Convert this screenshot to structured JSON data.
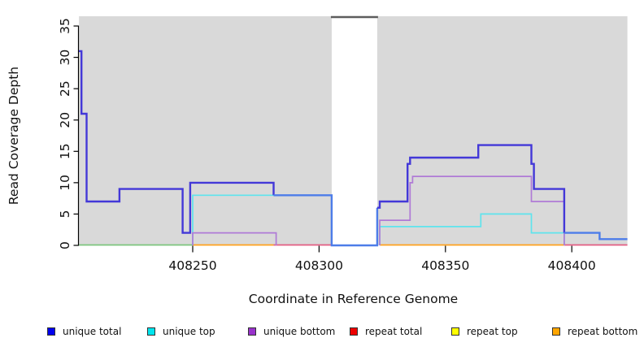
{
  "chart_data": {
    "type": "line",
    "subtype": "step-coverage",
    "title": "",
    "xlabel": "Coordinate in Reference Genome",
    "ylabel": "Read Coverage Depth",
    "xlim": [
      408205,
      408422
    ],
    "ylim": [
      0,
      35
    ],
    "x_ticks": [
      408250,
      408300,
      408350,
      408400
    ],
    "y_ticks": [
      0,
      5,
      10,
      15,
      20,
      25,
      30,
      35
    ],
    "grid": false,
    "plot_bg_color": "#d9d9d9",
    "gap_region": {
      "from": 408305,
      "to": 408323,
      "fill": "#ffffff",
      "top_line_color": "#5d5d5d"
    },
    "baseline_segments": [
      {
        "color": "#7cc47e",
        "from": 408205,
        "to": 408250
      },
      {
        "color": "#ffa11c",
        "from": 408250,
        "to": 408282
      },
      {
        "color": "#e25c82",
        "from": 408282,
        "to": 408305
      },
      {
        "color": "#ffa11c",
        "from": 408324,
        "to": 408397
      },
      {
        "color": "#e25c82",
        "from": 408397,
        "to": 408422
      }
    ],
    "series": [
      {
        "name": "unique total",
        "legend_color": "#0000EE",
        "width": 2.4,
        "paths": [
          {
            "color": "#4338d8",
            "points": [
              [
                408205,
                31
              ],
              [
                408206,
                31
              ],
              [
                408206,
                21
              ],
              [
                408208,
                21
              ],
              [
                408208,
                7
              ],
              [
                408221,
                7
              ],
              [
                408221,
                9
              ],
              [
                408246,
                9
              ],
              [
                408246,
                2
              ],
              [
                408249,
                2
              ],
              [
                408249,
                10
              ],
              [
                408282,
                10
              ],
              [
                408282,
                8
              ]
            ]
          },
          {
            "color": "#4d7de9",
            "points": [
              [
                408282,
                8
              ],
              [
                408305,
                8
              ],
              [
                408305,
                0
              ],
              [
                408323,
                0
              ],
              [
                408323,
                6
              ]
            ]
          },
          {
            "color": "#4338d8",
            "points": [
              [
                408323,
                6
              ],
              [
                408324,
                6
              ],
              [
                408324,
                7
              ],
              [
                408335,
                7
              ],
              [
                408335,
                13
              ],
              [
                408336,
                13
              ],
              [
                408336,
                14
              ],
              [
                408363,
                14
              ],
              [
                408363,
                16
              ],
              [
                408384,
                16
              ],
              [
                408384,
                13
              ],
              [
                408385,
                13
              ],
              [
                408385,
                9
              ],
              [
                408397,
                9
              ],
              [
                408397,
                2
              ]
            ]
          },
          {
            "color": "#4d7de9",
            "points": [
              [
                408397,
                2
              ],
              [
                408411,
                2
              ],
              [
                408411,
                1
              ],
              [
                408422,
                1
              ]
            ]
          }
        ]
      },
      {
        "name": "unique top",
        "legend_color": "#00E5EE",
        "width": 1.7,
        "paths": [
          {
            "color": "#5ee4ed",
            "points": [
              [
                408250,
                0
              ],
              [
                408250,
                8
              ],
              [
                408305,
                8
              ],
              [
                408305,
                0
              ]
            ]
          },
          {
            "color": "#5ee4ed",
            "points": [
              [
                408324,
                0
              ],
              [
                408324,
                3
              ],
              [
                408364,
                3
              ],
              [
                408364,
                5
              ],
              [
                408384,
                5
              ],
              [
                408384,
                2
              ],
              [
                408397,
                2
              ],
              [
                408397,
                0
              ]
            ]
          }
        ]
      },
      {
        "name": "unique bottom",
        "legend_color": "#9932CC",
        "width": 1.7,
        "paths": [
          {
            "color": "#b07ad6",
            "points": [
              [
                408250,
                0
              ],
              [
                408250,
                2
              ],
              [
                408283,
                2
              ],
              [
                408283,
                0
              ]
            ]
          },
          {
            "color": "#b07ad6",
            "points": [
              [
                408324,
                0
              ],
              [
                408324,
                4
              ],
              [
                408336,
                4
              ],
              [
                408336,
                10
              ],
              [
                408337,
                10
              ],
              [
                408337,
                11
              ],
              [
                408384,
                11
              ],
              [
                408384,
                7
              ],
              [
                408397,
                7
              ],
              [
                408397,
                0
              ]
            ]
          }
        ]
      },
      {
        "name": "repeat total",
        "legend_color": "#EE0000",
        "width": 1.7,
        "paths": []
      },
      {
        "name": "repeat top",
        "legend_color": "#FFFF00",
        "width": 1.7,
        "paths": []
      },
      {
        "name": "repeat bottom",
        "legend_color": "#FFA500",
        "width": 1.7,
        "paths": []
      }
    ]
  }
}
